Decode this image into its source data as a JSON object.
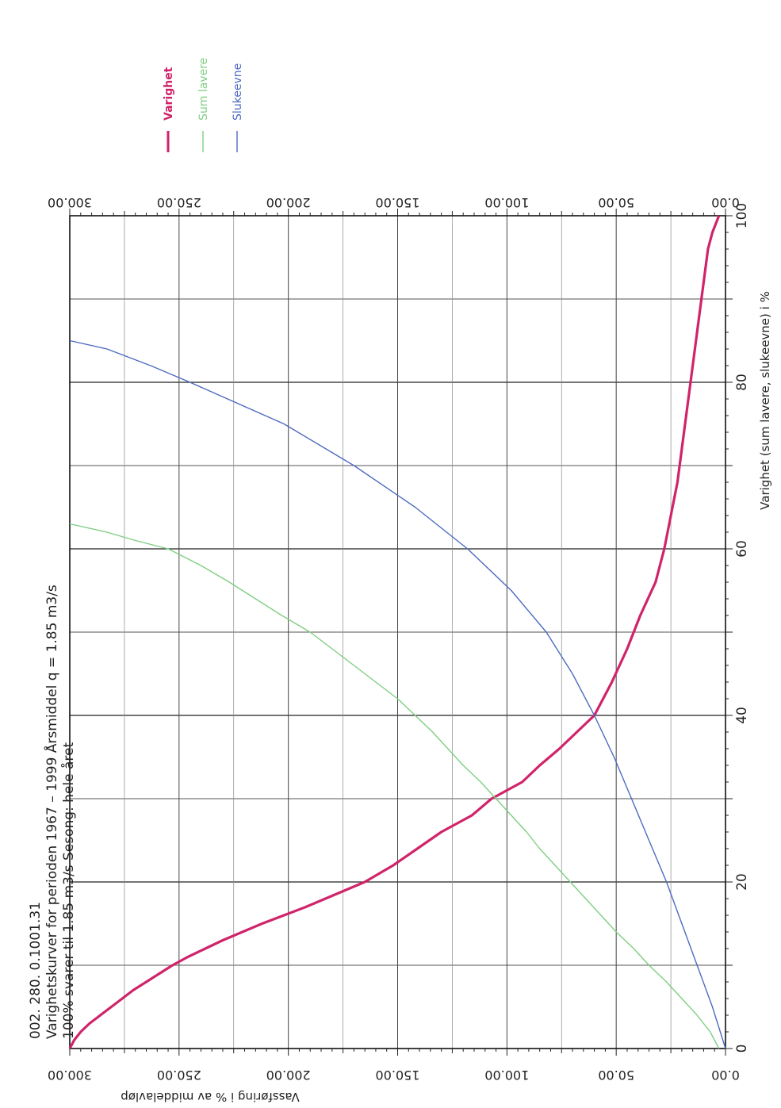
{
  "header": {
    "line1": "002. 280. 0.1001.31",
    "line2": "Varighetskurver for    perioden 1967  –  1999 Årsmiddel q  =     1.85  m3/s",
    "line3": "100% svarer til       1.85  m3/s                 Sesong: hele året"
  },
  "legend": [
    {
      "label": "Varighet",
      "color": "#d0246a",
      "weight": "bold"
    },
    {
      "label": "Sum lavere",
      "color": "#7ecf82",
      "weight": "normal"
    },
    {
      "label": "Slukeevne",
      "color": "#4d6bc0",
      "weight": "normal"
    }
  ],
  "chart_data": {
    "type": "line",
    "orientation": "rotated 90° counter-clockwise",
    "xlabel": "Varighet (sum lavere, slukeevne) i %",
    "ylabel": "Vassføring i % av middelavløp",
    "x_ticks": [
      "0",
      "20",
      "40",
      "60",
      "80",
      "100"
    ],
    "y_ticks_left": [
      "0.00",
      "50.00",
      "100.00",
      "150.00",
      "200.00",
      "250.00",
      "300.00"
    ],
    "y_ticks_right": [
      "0.00",
      "50.00",
      "100.00",
      "150.00",
      "200.00",
      "250.00",
      "300.00"
    ],
    "xlim": [
      0,
      100
    ],
    "ylim": [
      0,
      300
    ],
    "grid": true,
    "series": [
      {
        "name": "Varighet",
        "color": "#d0246a",
        "points": [
          [
            0,
            300
          ],
          [
            1,
            298
          ],
          [
            2,
            295
          ],
          [
            3,
            291
          ],
          [
            4,
            286
          ],
          [
            5,
            281
          ],
          [
            6,
            276
          ],
          [
            7,
            271
          ],
          [
            8,
            265
          ],
          [
            9,
            259
          ],
          [
            10,
            253
          ],
          [
            11,
            246
          ],
          [
            12,
            238
          ],
          [
            13,
            230
          ],
          [
            14,
            221
          ],
          [
            15,
            212
          ],
          [
            16,
            202
          ],
          [
            17,
            192
          ],
          [
            18,
            183
          ],
          [
            19,
            174
          ],
          [
            20,
            165
          ],
          [
            22,
            152
          ],
          [
            24,
            141
          ],
          [
            26,
            130
          ],
          [
            28,
            116
          ],
          [
            30,
            107
          ],
          [
            32,
            93
          ],
          [
            34,
            85
          ],
          [
            36,
            76
          ],
          [
            38,
            68
          ],
          [
            40,
            60
          ],
          [
            44,
            52
          ],
          [
            48,
            45
          ],
          [
            52,
            39
          ],
          [
            56,
            32
          ],
          [
            60,
            28
          ],
          [
            64,
            25
          ],
          [
            68,
            22
          ],
          [
            72,
            20
          ],
          [
            76,
            18
          ],
          [
            80,
            16
          ],
          [
            84,
            14
          ],
          [
            88,
            12
          ],
          [
            92,
            10
          ],
          [
            96,
            8
          ],
          [
            98,
            6
          ],
          [
            100,
            3
          ]
        ]
      },
      {
        "name": "Sum lavere",
        "color": "#7ecf82",
        "points": [
          [
            0,
            3
          ],
          [
            2,
            7
          ],
          [
            4,
            13
          ],
          [
            6,
            20
          ],
          [
            8,
            27
          ],
          [
            10,
            35
          ],
          [
            12,
            42
          ],
          [
            14,
            50
          ],
          [
            16,
            57
          ],
          [
            18,
            64
          ],
          [
            20,
            71
          ],
          [
            22,
            78
          ],
          [
            24,
            85
          ],
          [
            26,
            91
          ],
          [
            28,
            98
          ],
          [
            30,
            105
          ],
          [
            32,
            112
          ],
          [
            34,
            120
          ],
          [
            36,
            127
          ],
          [
            38,
            134
          ],
          [
            40,
            142
          ],
          [
            42,
            150
          ],
          [
            44,
            160
          ],
          [
            46,
            170
          ],
          [
            48,
            180
          ],
          [
            50,
            190
          ],
          [
            52,
            203
          ],
          [
            54,
            215
          ],
          [
            56,
            227
          ],
          [
            58,
            240
          ],
          [
            60,
            255
          ],
          [
            61,
            270
          ],
          [
            62,
            283
          ],
          [
            63,
            300
          ]
        ]
      },
      {
        "name": "Slukeevne",
        "color": "#4d6bc0",
        "points": [
          [
            0,
            0
          ],
          [
            5,
            6
          ],
          [
            10,
            13
          ],
          [
            15,
            20
          ],
          [
            20,
            27
          ],
          [
            25,
            35
          ],
          [
            30,
            43
          ],
          [
            35,
            51
          ],
          [
            40,
            60
          ],
          [
            45,
            70
          ],
          [
            50,
            82
          ],
          [
            55,
            98
          ],
          [
            60,
            118
          ],
          [
            65,
            142
          ],
          [
            70,
            170
          ],
          [
            75,
            202
          ],
          [
            80,
            245
          ],
          [
            82,
            263
          ],
          [
            84,
            283
          ],
          [
            85,
            300
          ]
        ]
      }
    ]
  }
}
